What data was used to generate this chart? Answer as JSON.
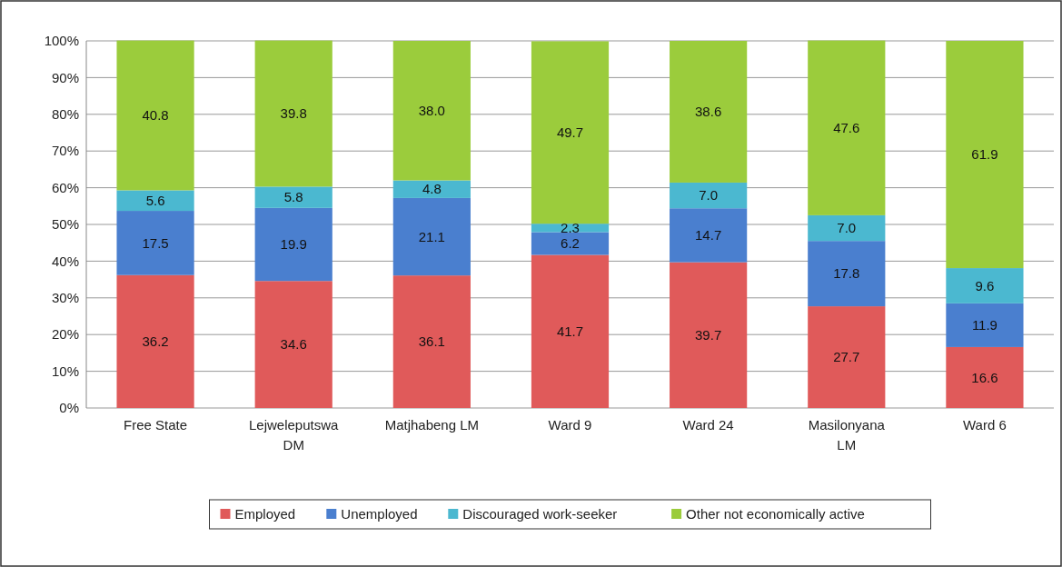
{
  "chart_data": {
    "type": "bar",
    "stacked": true,
    "categories": [
      "Free State",
      "Lejweleputswa DM",
      "Matjhabeng LM",
      "Ward 9",
      "Ward 24",
      "Masilonyana LM",
      "Ward 6"
    ],
    "series": [
      {
        "name": "Employed",
        "color": "#e05a5a",
        "values": [
          36.2,
          34.6,
          36.1,
          41.7,
          39.7,
          27.7,
          16.6
        ]
      },
      {
        "name": "Unemployed",
        "color": "#4a7fcf",
        "values": [
          17.5,
          19.9,
          21.1,
          6.2,
          14.7,
          17.8,
          11.9
        ]
      },
      {
        "name": "Discouraged work-seeker",
        "color": "#4bb8d0",
        "values": [
          5.6,
          5.8,
          4.8,
          2.3,
          7.0,
          7.0,
          9.6
        ]
      },
      {
        "name": "Other not economically active",
        "color": "#9bcc3c",
        "values": [
          40.8,
          39.8,
          38.0,
          49.7,
          38.6,
          47.6,
          61.9
        ]
      }
    ],
    "value_labels": [
      [
        "36.2",
        "34.6",
        "36.1",
        "41.7",
        "39.7",
        "27.7",
        "16.6"
      ],
      [
        "17.5",
        "19.9",
        "21.1",
        "6.2",
        "14.7",
        "17.8",
        "11.9"
      ],
      [
        "5.6",
        "5.8",
        "4.8",
        "2.3",
        "7.0",
        "7.0",
        "9.6"
      ],
      [
        "40.8",
        "39.8",
        "38.0",
        "49.7",
        "38.6",
        "47.6",
        "61.9"
      ]
    ],
    "ylim": [
      0,
      100
    ],
    "yticks": [
      {
        "value": 0,
        "label": "0%"
      },
      {
        "value": 10,
        "label": "10%"
      },
      {
        "value": 20,
        "label": "20%"
      },
      {
        "value": 30,
        "label": "30%"
      },
      {
        "value": 40,
        "label": "40%"
      },
      {
        "value": 50,
        "label": "50%"
      },
      {
        "value": 60,
        "label": "60%"
      },
      {
        "value": 70,
        "label": "70%"
      },
      {
        "value": 80,
        "label": "80%"
      },
      {
        "value": 90,
        "label": "90%"
      },
      {
        "value": 100,
        "label": "100%"
      }
    ],
    "grid": "y",
    "legend": "bottom"
  }
}
